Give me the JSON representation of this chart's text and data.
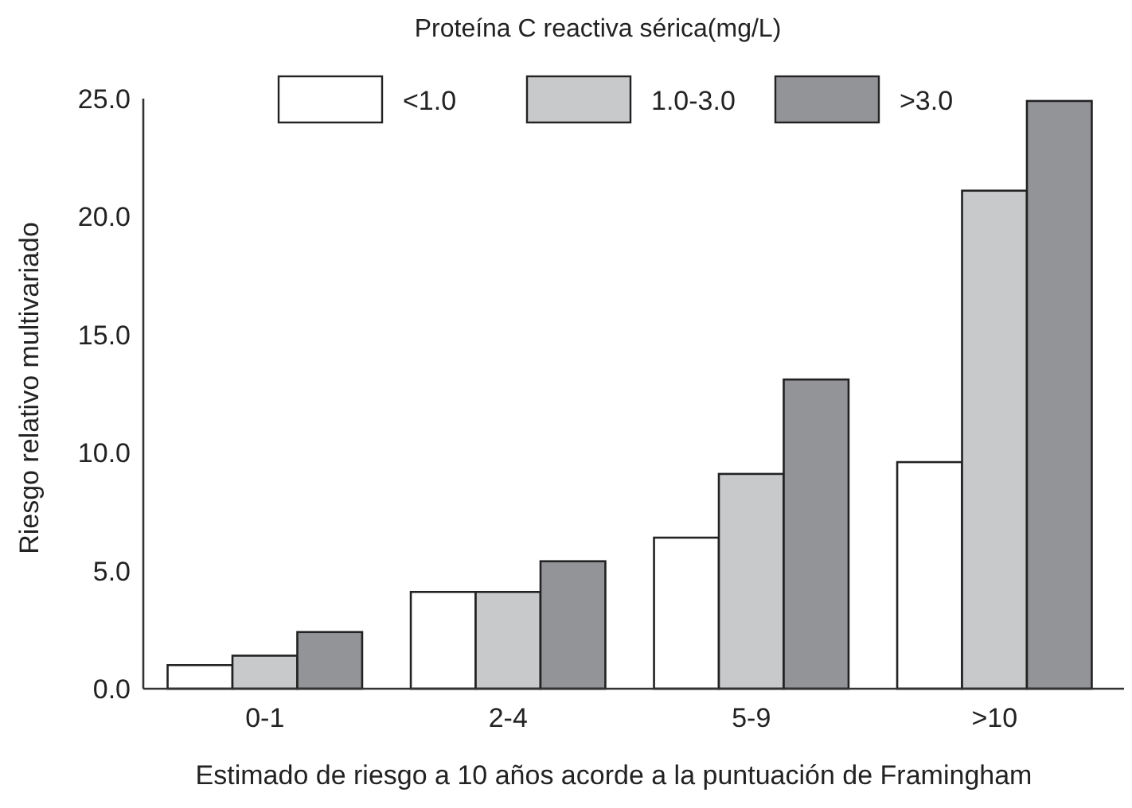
{
  "chart_data": {
    "type": "bar",
    "legend_title": "Proteína C reactiva sérica(mg/L)",
    "xlabel": "Estimado de riesgo a 10 años acorde a la puntuación de Framingham",
    "ylabel": "Riesgo relativo multivariado",
    "categories": [
      "0-1",
      "2-4",
      "5-9",
      ">10"
    ],
    "series": [
      {
        "name": "<1.0",
        "color": "#ffffff",
        "values": [
          1.0,
          4.1,
          6.4,
          9.6
        ]
      },
      {
        "name": "1.0-3.0",
        "color": "#c8c9cb",
        "values": [
          1.4,
          4.1,
          9.1,
          21.1
        ]
      },
      {
        "name": ">3.0",
        "color": "#939498",
        "values": [
          2.4,
          5.4,
          13.1,
          24.9
        ]
      }
    ],
    "ylim": [
      0,
      25
    ],
    "yticks": [
      {
        "value": 0,
        "label": "0.0"
      },
      {
        "value": 5,
        "label": "5.0"
      },
      {
        "value": 10,
        "label": "10.0"
      },
      {
        "value": 15,
        "label": "15.0"
      },
      {
        "value": 20,
        "label": "20.0"
      },
      {
        "value": 25,
        "label": "25.0"
      }
    ],
    "grid": false,
    "legend": "top"
  }
}
